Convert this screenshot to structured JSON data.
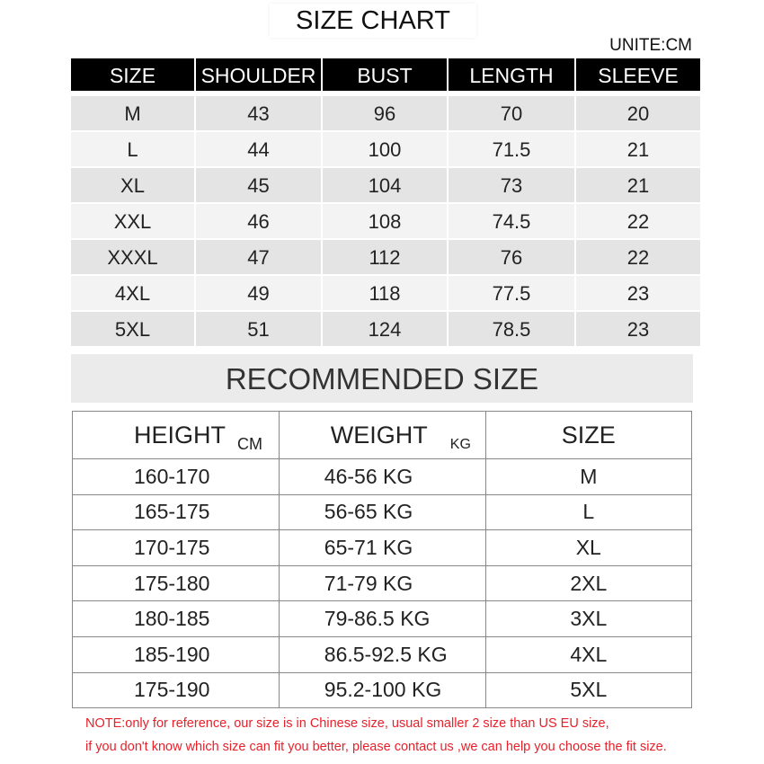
{
  "title": "SIZE CHART",
  "unit": "UNITE:CM",
  "size_table": {
    "headers": [
      "SIZE",
      "SHOULDER",
      "BUST",
      "LENGTH",
      "SLEEVE"
    ],
    "rows": [
      [
        "M",
        "43",
        "96",
        "70",
        "20"
      ],
      [
        "L",
        "44",
        "100",
        "71.5",
        "21"
      ],
      [
        "XL",
        "45",
        "104",
        "73",
        "21"
      ],
      [
        "XXL",
        "46",
        "108",
        "74.5",
        "22"
      ],
      [
        "XXXL",
        "47",
        "112",
        "76",
        "22"
      ],
      [
        "4XL",
        "49",
        "118",
        "77.5",
        "23"
      ],
      [
        "5XL",
        "51",
        "124",
        "78.5",
        "23"
      ]
    ]
  },
  "recommended": {
    "title": "RECOMMENDED SIZE",
    "headers": {
      "height": "HEIGHT",
      "height_unit": "CM",
      "weight": "WEIGHT",
      "weight_unit": "KG",
      "size": "SIZE"
    },
    "rows": [
      [
        "160-170",
        "46-56 KG",
        "M"
      ],
      [
        "165-175",
        "56-65 KG",
        "L"
      ],
      [
        "170-175",
        "65-71 KG",
        "XL"
      ],
      [
        "175-180",
        "71-79 KG",
        "2XL"
      ],
      [
        "180-185",
        "79-86.5 KG",
        "3XL"
      ],
      [
        "185-190",
        "86.5-92.5 KG",
        "4XL"
      ],
      [
        "175-190",
        "95.2-100 KG",
        "5XL"
      ]
    ]
  },
  "notes": [
    "NOTE:only for reference, our size is in Chinese size, usual smaller 2 size than US EU size,",
    "if  you don't know which size can fit you better, please contact us ,we can help you choose the fit size."
  ]
}
